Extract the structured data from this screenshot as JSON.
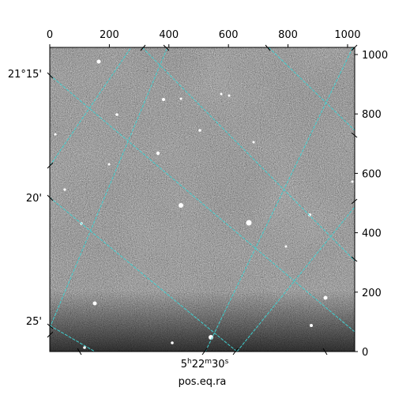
{
  "figure": {
    "xlabel_bottom": "pos.eq.ra",
    "ra_tick_label": {
      "hours": "5",
      "h": "h",
      "minutes": "22",
      "m": "m",
      "seconds": "30",
      "s": "s"
    },
    "dec_tick_labels": [
      "21°15'",
      "20'",
      "25'"
    ],
    "pixel_axis": {
      "top_ticks": [
        0,
        200,
        400,
        600,
        800,
        1000
      ],
      "right_ticks": [
        0,
        200,
        400,
        600,
        800,
        1000
      ],
      "range": [
        0,
        1024
      ]
    },
    "grid_color": "#3fd0d0",
    "image_background": "#7a7a7a"
  }
}
